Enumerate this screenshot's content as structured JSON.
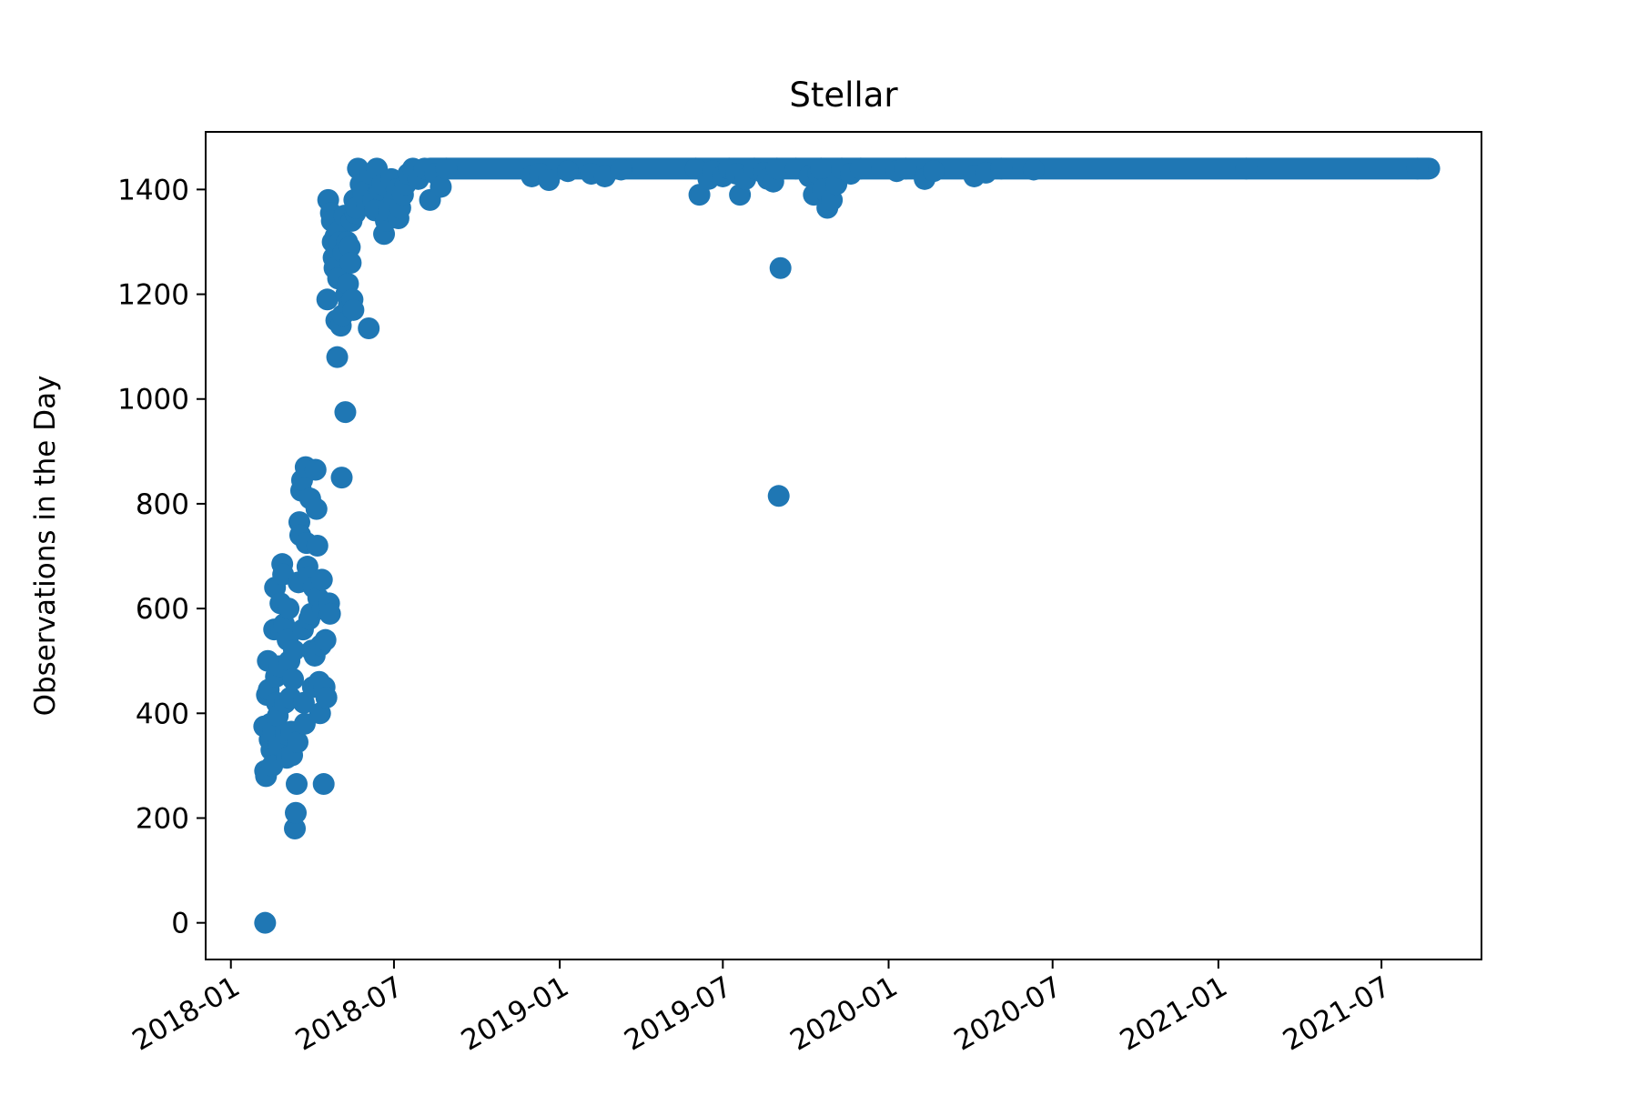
{
  "chart_data": {
    "type": "scatter",
    "title": "Stellar",
    "xlabel": "",
    "ylabel": "Observations in the Day",
    "series_color": "#1f77b4",
    "xlim": [
      "2017-12-04",
      "2021-10-20"
    ],
    "ylim": [
      -70,
      1510
    ],
    "grid": false,
    "legend": "none",
    "xticks": [
      {
        "date": "2018-01-01",
        "label": "2018-01"
      },
      {
        "date": "2018-07-01",
        "label": "2018-07"
      },
      {
        "date": "2019-01-01",
        "label": "2019-01"
      },
      {
        "date": "2019-07-01",
        "label": "2019-07"
      },
      {
        "date": "2020-01-01",
        "label": "2020-01"
      },
      {
        "date": "2020-07-01",
        "label": "2020-07"
      },
      {
        "date": "2021-01-01",
        "label": "2021-01"
      },
      {
        "date": "2021-07-01",
        "label": "2021-07"
      }
    ],
    "yticks": [
      {
        "value": 0,
        "label": "0"
      },
      {
        "value": 200,
        "label": "200"
      },
      {
        "value": 400,
        "label": "400"
      },
      {
        "value": 600,
        "label": "600"
      },
      {
        "value": 800,
        "label": "800"
      },
      {
        "value": 1000,
        "label": "1000"
      },
      {
        "value": 1200,
        "label": "1200"
      },
      {
        "value": 1400,
        "label": "1400"
      }
    ],
    "series": [
      {
        "points": [
          [
            "2018-02-08",
            0
          ],
          [
            "2018-02-07",
            375
          ],
          [
            "2018-02-08",
            290
          ],
          [
            "2018-02-09",
            280
          ],
          [
            "2018-02-10",
            435
          ],
          [
            "2018-02-11",
            500
          ],
          [
            "2018-02-12",
            445
          ],
          [
            "2018-02-13",
            350
          ],
          [
            "2018-02-14",
            380
          ],
          [
            "2018-02-15",
            330
          ],
          [
            "2018-02-16",
            300
          ],
          [
            "2018-02-17",
            365
          ],
          [
            "2018-02-18",
            560
          ],
          [
            "2018-02-19",
            640
          ],
          [
            "2018-02-20",
            470
          ],
          [
            "2018-02-21",
            420
          ],
          [
            "2018-02-22",
            395
          ],
          [
            "2018-02-23",
            340
          ],
          [
            "2018-02-24",
            490
          ],
          [
            "2018-02-25",
            610
          ],
          [
            "2018-02-26",
            560
          ],
          [
            "2018-02-27",
            685
          ],
          [
            "2018-02-28",
            665
          ],
          [
            "2018-03-01",
            570
          ],
          [
            "2018-03-02",
            420
          ],
          [
            "2018-03-03",
            360
          ],
          [
            "2018-03-04",
            315
          ],
          [
            "2018-03-05",
            540
          ],
          [
            "2018-03-06",
            600
          ],
          [
            "2018-03-07",
            500
          ],
          [
            "2018-03-08",
            430
          ],
          [
            "2018-03-09",
            365
          ],
          [
            "2018-03-10",
            320
          ],
          [
            "2018-03-11",
            465
          ],
          [
            "2018-03-12",
            520
          ],
          [
            "2018-03-13",
            180
          ],
          [
            "2018-03-14",
            210
          ],
          [
            "2018-03-15",
            265
          ],
          [
            "2018-03-16",
            345
          ],
          [
            "2018-03-17",
            650
          ],
          [
            "2018-03-18",
            765
          ],
          [
            "2018-03-19",
            740
          ],
          [
            "2018-03-20",
            825
          ],
          [
            "2018-03-21",
            845
          ],
          [
            "2018-03-22",
            560
          ],
          [
            "2018-03-23",
            420
          ],
          [
            "2018-03-24",
            380
          ],
          [
            "2018-03-25",
            870
          ],
          [
            "2018-03-26",
            725
          ],
          [
            "2018-03-27",
            680
          ],
          [
            "2018-03-28",
            660
          ],
          [
            "2018-03-29",
            580
          ],
          [
            "2018-03-30",
            810
          ],
          [
            "2018-03-31",
            590
          ],
          [
            "2018-04-01",
            520
          ],
          [
            "2018-04-02",
            450
          ],
          [
            "2018-04-03",
            640
          ],
          [
            "2018-04-04",
            510
          ],
          [
            "2018-04-05",
            865
          ],
          [
            "2018-04-06",
            790
          ],
          [
            "2018-04-07",
            720
          ],
          [
            "2018-04-08",
            620
          ],
          [
            "2018-04-09",
            460
          ],
          [
            "2018-04-10",
            400
          ],
          [
            "2018-04-11",
            530
          ],
          [
            "2018-04-12",
            655
          ],
          [
            "2018-04-13",
            600
          ],
          [
            "2018-04-14",
            265
          ],
          [
            "2018-04-15",
            450
          ],
          [
            "2018-04-16",
            540
          ],
          [
            "2018-04-17",
            430
          ],
          [
            "2018-04-18",
            1190
          ],
          [
            "2018-04-19",
            1380
          ],
          [
            "2018-04-20",
            610
          ],
          [
            "2018-04-21",
            590
          ],
          [
            "2018-04-22",
            1355
          ],
          [
            "2018-04-23",
            1340
          ],
          [
            "2018-04-24",
            1300
          ],
          [
            "2018-04-25",
            1270
          ],
          [
            "2018-04-26",
            1250
          ],
          [
            "2018-04-27",
            1310
          ],
          [
            "2018-04-28",
            1150
          ],
          [
            "2018-04-29",
            1080
          ],
          [
            "2018-04-30",
            1230
          ],
          [
            "2018-05-01",
            1320
          ],
          [
            "2018-05-02",
            1300
          ],
          [
            "2018-05-03",
            1140
          ],
          [
            "2018-05-04",
            850
          ],
          [
            "2018-05-05",
            1160
          ],
          [
            "2018-05-06",
            1280
          ],
          [
            "2018-05-07",
            1350
          ],
          [
            "2018-05-08",
            975
          ],
          [
            "2018-05-09",
            1200
          ],
          [
            "2018-05-10",
            1300
          ],
          [
            "2018-05-11",
            1220
          ],
          [
            "2018-05-12",
            1180
          ],
          [
            "2018-05-13",
            1290
          ],
          [
            "2018-05-14",
            1260
          ],
          [
            "2018-05-15",
            1340
          ],
          [
            "2018-05-16",
            1190
          ],
          [
            "2018-05-17",
            1170
          ],
          [
            "2018-05-18",
            1380
          ],
          [
            "2018-05-19",
            1355
          ],
          [
            "2018-05-20",
            1365
          ],
          [
            "2018-05-22",
            1440
          ],
          [
            "2018-05-25",
            1410
          ],
          [
            "2018-05-28",
            1395
          ],
          [
            "2018-06-01",
            1370
          ],
          [
            "2018-06-03",
            1135
          ],
          [
            "2018-06-05",
            1430
          ],
          [
            "2018-06-08",
            1380
          ],
          [
            "2018-06-10",
            1360
          ],
          [
            "2018-06-12",
            1440
          ],
          [
            "2018-06-15",
            1400
          ],
          [
            "2018-06-18",
            1410
          ],
          [
            "2018-06-20",
            1315
          ],
          [
            "2018-06-22",
            1340
          ],
          [
            "2018-06-25",
            1360
          ],
          [
            "2018-06-28",
            1420
          ],
          [
            "2018-07-01",
            1380
          ],
          [
            "2018-07-04",
            1400
          ],
          [
            "2018-07-06",
            1345
          ],
          [
            "2018-07-08",
            1365
          ],
          [
            "2018-07-11",
            1390
          ],
          [
            "2018-07-14",
            1410
          ],
          [
            "2018-07-17",
            1430
          ],
          [
            "2018-07-22",
            1440
          ],
          [
            "2018-07-28",
            1420
          ],
          [
            "2018-08-04",
            1440
          ],
          [
            "2018-08-10",
            1380
          ],
          [
            "2018-08-16",
            1430
          ],
          [
            "2018-08-22",
            1405
          ],
          [
            "2018-08-28",
            1440
          ],
          [
            "2018-12-01",
            1425
          ],
          [
            "2018-12-10",
            1430
          ],
          [
            "2018-12-20",
            1418
          ],
          [
            "2019-01-10",
            1435
          ],
          [
            "2019-02-05",
            1430
          ],
          [
            "2019-02-20",
            1425
          ],
          [
            "2019-03-10",
            1438
          ],
          [
            "2019-06-01",
            1440
          ],
          [
            "2019-06-05",
            1390
          ],
          [
            "2019-06-15",
            1420
          ],
          [
            "2019-06-20",
            1435
          ],
          [
            "2019-07-01",
            1425
          ],
          [
            "2019-07-08",
            1440
          ],
          [
            "2019-07-16",
            1430
          ],
          [
            "2019-07-20",
            1390
          ],
          [
            "2019-07-26",
            1420
          ],
          [
            "2019-08-05",
            1440
          ],
          [
            "2019-08-15",
            1432
          ],
          [
            "2019-08-20",
            1420
          ],
          [
            "2019-08-26",
            1415
          ],
          [
            "2019-08-30",
            1440
          ],
          [
            "2019-09-01",
            815
          ],
          [
            "2019-09-03",
            1250
          ],
          [
            "2019-09-20",
            1440
          ],
          [
            "2019-10-05",
            1425
          ],
          [
            "2019-10-10",
            1390
          ],
          [
            "2019-10-15",
            1430
          ],
          [
            "2019-10-18",
            1440
          ],
          [
            "2019-10-20",
            1400
          ],
          [
            "2019-10-25",
            1365
          ],
          [
            "2019-10-30",
            1380
          ],
          [
            "2019-11-04",
            1410
          ],
          [
            "2019-11-10",
            1440
          ],
          [
            "2019-11-20",
            1430
          ],
          [
            "2019-12-01",
            1440
          ],
          [
            "2020-01-10",
            1435
          ],
          [
            "2020-01-20",
            1440
          ],
          [
            "2020-02-10",
            1420
          ],
          [
            "2020-02-20",
            1435
          ],
          [
            "2020-04-05",
            1425
          ],
          [
            "2020-04-18",
            1432
          ],
          [
            "2020-05-05",
            1440
          ],
          [
            "2020-06-10",
            1438
          ],
          [
            "2021-02-01",
            1440
          ],
          [
            "2021-08-10",
            1440
          ]
        ],
        "segments": [
          {
            "start": "2018-08-10",
            "end": "2021-08-23",
            "value": 1440
          }
        ]
      }
    ]
  }
}
